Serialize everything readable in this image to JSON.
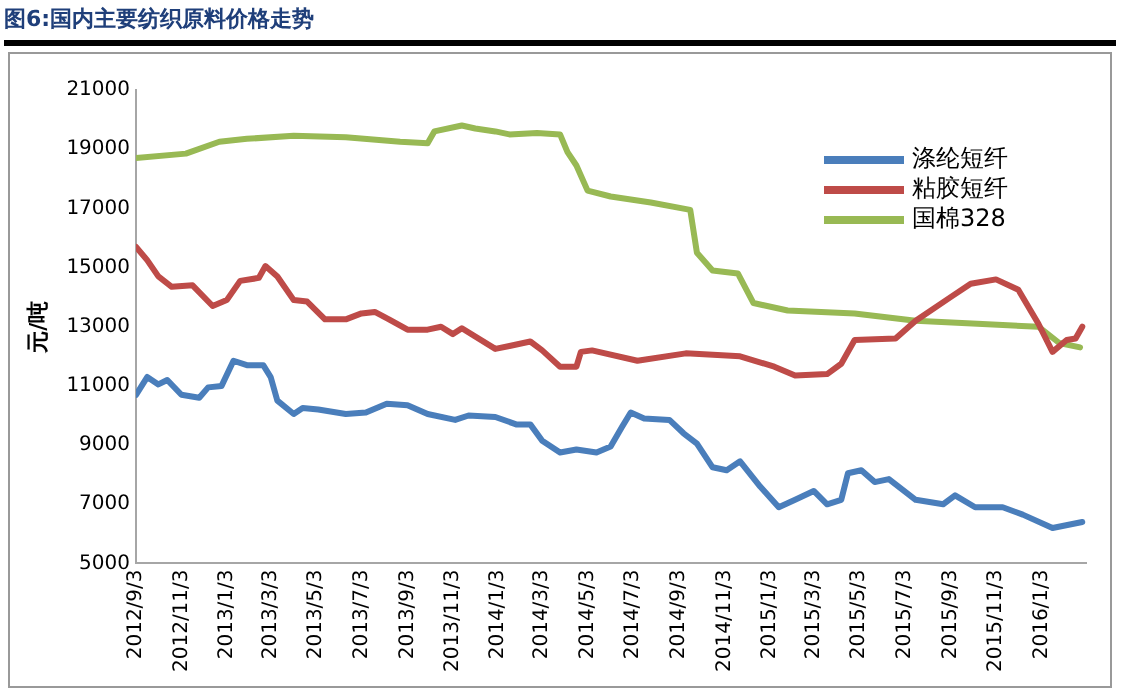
{
  "chart_data": {
    "type": "line",
    "title": "图6:国内主要纺织原料价格走势",
    "ylabel": "元/吨",
    "xlim": [
      "2012-09-03",
      "2016-03-03"
    ],
    "xticks": [
      {
        "value": "2012-09-03",
        "label": "2012/9/3"
      },
      {
        "value": "2012-11-03",
        "label": "2012/11/3"
      },
      {
        "value": "2013-01-03",
        "label": "2013/1/3"
      },
      {
        "value": "2013-03-03",
        "label": "2013/3/3"
      },
      {
        "value": "2013-05-03",
        "label": "2013/5/3"
      },
      {
        "value": "2013-07-03",
        "label": "2013/7/3"
      },
      {
        "value": "2013-09-03",
        "label": "2013/9/3"
      },
      {
        "value": "2013-11-03",
        "label": "2013/11/3"
      },
      {
        "value": "2014-01-03",
        "label": "2014/1/3"
      },
      {
        "value": "2014-03-03",
        "label": "2014/3/3"
      },
      {
        "value": "2014-05-03",
        "label": "2014/5/3"
      },
      {
        "value": "2014-07-03",
        "label": "2014/7/3"
      },
      {
        "value": "2014-09-03",
        "label": "2014/9/3"
      },
      {
        "value": "2014-11-03",
        "label": "2014/11/3"
      },
      {
        "value": "2015-01-03",
        "label": "2015/1/3"
      },
      {
        "value": "2015-03-03",
        "label": "2015/3/3"
      },
      {
        "value": "2015-05-03",
        "label": "2015/5/3"
      },
      {
        "value": "2015-07-03",
        "label": "2015/7/3"
      },
      {
        "value": "2015-09-03",
        "label": "2015/9/3"
      },
      {
        "value": "2015-11-03",
        "label": "2015/11/3"
      },
      {
        "value": "2016-01-03",
        "label": "2016/1/3"
      }
    ],
    "ylim": [
      5000,
      21000
    ],
    "yticks": [
      5000,
      7000,
      9000,
      11000,
      13000,
      15000,
      17000,
      19000,
      21000
    ],
    "grid": false,
    "legend": "top right",
    "marker": "none",
    "line_style": "solid",
    "series": [
      {
        "name": "涤纶短纤",
        "color": "#4a7ebb",
        "x": [
          "2012-09-03",
          "2012-09-18",
          "2012-10-03",
          "2012-10-15",
          "2012-11-03",
          "2012-11-27",
          "2012-12-09",
          "2012-12-27",
          "2013-01-12",
          "2013-01-30",
          "2013-02-21",
          "2013-03-03",
          "2013-03-12",
          "2013-04-03",
          "2013-04-15",
          "2013-05-06",
          "2013-06-12",
          "2013-07-09",
          "2013-08-06",
          "2013-09-03",
          "2013-09-30",
          "2013-11-06",
          "2013-11-24",
          "2013-12-30",
          "2014-01-27",
          "2014-02-15",
          "2014-03-03",
          "2014-03-27",
          "2014-04-18",
          "2014-05-15",
          "2014-06-03",
          "2014-06-18",
          "2014-06-30",
          "2014-07-18",
          "2014-08-21",
          "2014-09-09",
          "2014-09-27",
          "2014-10-18",
          "2014-11-06",
          "2014-11-24",
          "2014-12-21",
          "2015-01-15",
          "2015-02-06",
          "2015-03-03",
          "2015-03-21",
          "2015-04-09",
          "2015-04-18",
          "2015-05-06",
          "2015-05-24",
          "2015-06-12",
          "2015-07-18",
          "2015-08-24",
          "2015-09-09",
          "2015-10-06",
          "2015-11-12",
          "2015-12-09",
          "2016-01-18",
          "2016-02-27"
        ],
        "values": [
          10700,
          11300,
          11050,
          11200,
          10700,
          10600,
          10950,
          11000,
          11850,
          11700,
          11700,
          11300,
          10500,
          10050,
          10250,
          10200,
          10050,
          10100,
          10400,
          10350,
          10050,
          9850,
          10000,
          9950,
          9700,
          9700,
          9150,
          8750,
          8850,
          8750,
          8950,
          9600,
          10100,
          9900,
          9850,
          9400,
          9050,
          8250,
          8150,
          8450,
          7600,
          6900,
          7150,
          7450,
          7000,
          7150,
          8050,
          8150,
          7750,
          7850,
          7150,
          7000,
          7300,
          6900,
          6900,
          6650,
          6200,
          6400
        ]
      },
      {
        "name": "粘胶短纤",
        "color": "#be4b48",
        "x": [
          "2012-09-03",
          "2012-09-18",
          "2012-10-03",
          "2012-10-21",
          "2012-11-18",
          "2012-12-15",
          "2013-01-03",
          "2013-01-21",
          "2013-02-15",
          "2013-02-24",
          "2013-03-12",
          "2013-04-03",
          "2013-04-21",
          "2013-05-15",
          "2013-06-12",
          "2013-07-03",
          "2013-07-21",
          "2013-08-09",
          "2013-09-03",
          "2013-09-30",
          "2013-10-18",
          "2013-11-03",
          "2013-11-15",
          "2013-12-30",
          "2014-01-18",
          "2014-02-15",
          "2014-03-03",
          "2014-03-27",
          "2014-04-18",
          "2014-04-24",
          "2014-05-09",
          "2014-07-09",
          "2014-09-12",
          "2014-11-24",
          "2015-01-09",
          "2015-02-06",
          "2015-03-21",
          "2015-04-09",
          "2015-04-27",
          "2015-06-21",
          "2015-07-18",
          "2015-09-03",
          "2015-09-30",
          "2015-11-03",
          "2015-12-03",
          "2015-12-30",
          "2016-01-18",
          "2016-02-06",
          "2016-02-18",
          "2016-02-27"
        ],
        "values": [
          15700,
          15250,
          14700,
          14350,
          14400,
          13700,
          13900,
          14550,
          14650,
          15050,
          14700,
          13900,
          13850,
          13250,
          13250,
          13450,
          13500,
          13250,
          12900,
          12900,
          13000,
          12750,
          12950,
          12250,
          12350,
          12500,
          12200,
          11650,
          11650,
          12150,
          12200,
          11850,
          12100,
          12000,
          11650,
          11350,
          11400,
          11750,
          12550,
          12600,
          13200,
          14000,
          14450,
          14600,
          14250,
          13100,
          12150,
          12550,
          12600,
          13000
        ]
      },
      {
        "name": "国棉328",
        "color": "#98b954",
        "x": [
          "2012-09-03",
          "2012-11-09",
          "2012-12-24",
          "2013-01-30",
          "2013-04-03",
          "2013-06-12",
          "2013-08-24",
          "2013-09-30",
          "2013-10-09",
          "2013-11-15",
          "2013-12-03",
          "2013-12-30",
          "2014-01-18",
          "2014-02-24",
          "2014-03-27",
          "2014-04-06",
          "2014-04-18",
          "2014-05-03",
          "2014-06-03",
          "2014-07-27",
          "2014-09-18",
          "2014-09-27",
          "2014-10-18",
          "2014-11-21",
          "2014-12-12",
          "2015-01-27",
          "2015-04-27",
          "2015-07-18",
          "2015-10-09",
          "2015-12-30",
          "2016-01-27",
          "2016-02-24"
        ],
        "values": [
          18700,
          18850,
          19250,
          19350,
          19450,
          19400,
          19250,
          19200,
          19600,
          19800,
          19700,
          19600,
          19500,
          19550,
          19500,
          18900,
          18450,
          17600,
          17400,
          17200,
          16950,
          15500,
          14900,
          14800,
          13800,
          13550,
          13450,
          13200,
          13100,
          13000,
          12450,
          12300
        ]
      }
    ]
  }
}
